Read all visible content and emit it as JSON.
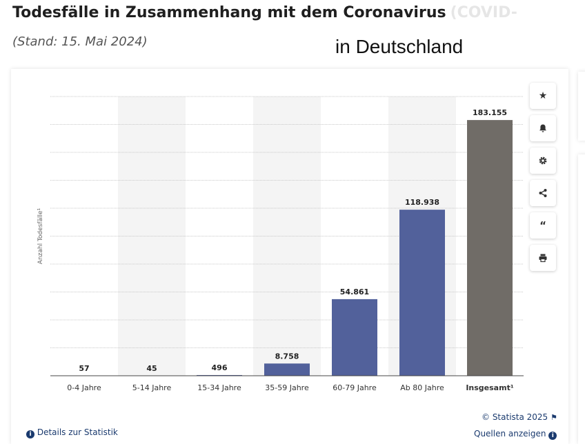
{
  "header": {
    "title": "Todesfälle in Zusammenhang mit dem Coronavirus",
    "title_faded": "(COVID-",
    "subtitle": "(Stand: 15. Mai 2024)",
    "overlay_text": "in Deutschland"
  },
  "toolbar": {
    "icons": [
      "star-icon",
      "bell-icon",
      "gear-icon",
      "share-icon",
      "quote-icon",
      "print-icon"
    ]
  },
  "footer": {
    "details": "Details zur Statistik",
    "copyright": "© Statista 2025",
    "sources": "Quellen anzeigen"
  },
  "chart_data": {
    "type": "bar",
    "title": "",
    "xlabel": "",
    "ylabel": "Anzahl Todesfälle¹",
    "categories": [
      "0-4 Jahre",
      "5-14 Jahre",
      "15-34 Jahre",
      "35-59 Jahre",
      "60-79 Jahre",
      "Ab 80 Jahre",
      "Insgesamt¹"
    ],
    "values": [
      57,
      45,
      496,
      8758,
      54861,
      118938,
      183155
    ],
    "labels": [
      "57",
      "45",
      "496",
      "8.758",
      "54.861",
      "118.938",
      "183.155"
    ],
    "ylim": [
      0,
      200000
    ],
    "grid": true,
    "colors": {
      "bar": "#52619b",
      "total": "#706c67",
      "band": "#f4f4f4",
      "grid": "#c8c8c8"
    }
  }
}
